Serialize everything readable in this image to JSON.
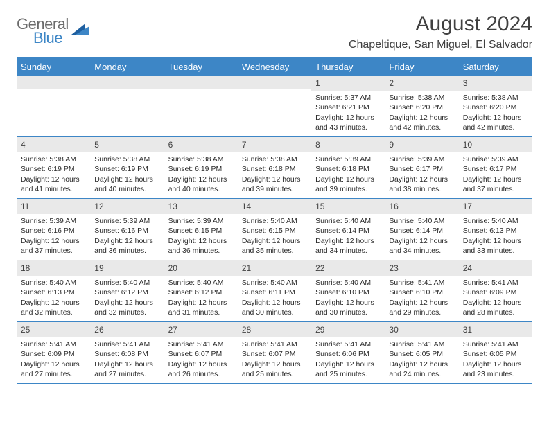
{
  "logo": {
    "text1": "General",
    "text2": "Blue"
  },
  "title": "August 2024",
  "location": "Chapeltique, San Miguel, El Salvador",
  "colors": {
    "accent": "#3d86c6",
    "header_gray": "#e9e9e9",
    "text_dark": "#404040",
    "logo_gray": "#6b6b6b"
  },
  "weekdays": [
    "Sunday",
    "Monday",
    "Tuesday",
    "Wednesday",
    "Thursday",
    "Friday",
    "Saturday"
  ],
  "weeks": [
    [
      {
        "n": "",
        "sr": "",
        "ss": "",
        "dl": ""
      },
      {
        "n": "",
        "sr": "",
        "ss": "",
        "dl": ""
      },
      {
        "n": "",
        "sr": "",
        "ss": "",
        "dl": ""
      },
      {
        "n": "",
        "sr": "",
        "ss": "",
        "dl": ""
      },
      {
        "n": "1",
        "sr": "Sunrise: 5:37 AM",
        "ss": "Sunset: 6:21 PM",
        "dl": "Daylight: 12 hours and 43 minutes."
      },
      {
        "n": "2",
        "sr": "Sunrise: 5:38 AM",
        "ss": "Sunset: 6:20 PM",
        "dl": "Daylight: 12 hours and 42 minutes."
      },
      {
        "n": "3",
        "sr": "Sunrise: 5:38 AM",
        "ss": "Sunset: 6:20 PM",
        "dl": "Daylight: 12 hours and 42 minutes."
      }
    ],
    [
      {
        "n": "4",
        "sr": "Sunrise: 5:38 AM",
        "ss": "Sunset: 6:19 PM",
        "dl": "Daylight: 12 hours and 41 minutes."
      },
      {
        "n": "5",
        "sr": "Sunrise: 5:38 AM",
        "ss": "Sunset: 6:19 PM",
        "dl": "Daylight: 12 hours and 40 minutes."
      },
      {
        "n": "6",
        "sr": "Sunrise: 5:38 AM",
        "ss": "Sunset: 6:19 PM",
        "dl": "Daylight: 12 hours and 40 minutes."
      },
      {
        "n": "7",
        "sr": "Sunrise: 5:38 AM",
        "ss": "Sunset: 6:18 PM",
        "dl": "Daylight: 12 hours and 39 minutes."
      },
      {
        "n": "8",
        "sr": "Sunrise: 5:39 AM",
        "ss": "Sunset: 6:18 PM",
        "dl": "Daylight: 12 hours and 39 minutes."
      },
      {
        "n": "9",
        "sr": "Sunrise: 5:39 AM",
        "ss": "Sunset: 6:17 PM",
        "dl": "Daylight: 12 hours and 38 minutes."
      },
      {
        "n": "10",
        "sr": "Sunrise: 5:39 AM",
        "ss": "Sunset: 6:17 PM",
        "dl": "Daylight: 12 hours and 37 minutes."
      }
    ],
    [
      {
        "n": "11",
        "sr": "Sunrise: 5:39 AM",
        "ss": "Sunset: 6:16 PM",
        "dl": "Daylight: 12 hours and 37 minutes."
      },
      {
        "n": "12",
        "sr": "Sunrise: 5:39 AM",
        "ss": "Sunset: 6:16 PM",
        "dl": "Daylight: 12 hours and 36 minutes."
      },
      {
        "n": "13",
        "sr": "Sunrise: 5:39 AM",
        "ss": "Sunset: 6:15 PM",
        "dl": "Daylight: 12 hours and 36 minutes."
      },
      {
        "n": "14",
        "sr": "Sunrise: 5:40 AM",
        "ss": "Sunset: 6:15 PM",
        "dl": "Daylight: 12 hours and 35 minutes."
      },
      {
        "n": "15",
        "sr": "Sunrise: 5:40 AM",
        "ss": "Sunset: 6:14 PM",
        "dl": "Daylight: 12 hours and 34 minutes."
      },
      {
        "n": "16",
        "sr": "Sunrise: 5:40 AM",
        "ss": "Sunset: 6:14 PM",
        "dl": "Daylight: 12 hours and 34 minutes."
      },
      {
        "n": "17",
        "sr": "Sunrise: 5:40 AM",
        "ss": "Sunset: 6:13 PM",
        "dl": "Daylight: 12 hours and 33 minutes."
      }
    ],
    [
      {
        "n": "18",
        "sr": "Sunrise: 5:40 AM",
        "ss": "Sunset: 6:13 PM",
        "dl": "Daylight: 12 hours and 32 minutes."
      },
      {
        "n": "19",
        "sr": "Sunrise: 5:40 AM",
        "ss": "Sunset: 6:12 PM",
        "dl": "Daylight: 12 hours and 32 minutes."
      },
      {
        "n": "20",
        "sr": "Sunrise: 5:40 AM",
        "ss": "Sunset: 6:12 PM",
        "dl": "Daylight: 12 hours and 31 minutes."
      },
      {
        "n": "21",
        "sr": "Sunrise: 5:40 AM",
        "ss": "Sunset: 6:11 PM",
        "dl": "Daylight: 12 hours and 30 minutes."
      },
      {
        "n": "22",
        "sr": "Sunrise: 5:40 AM",
        "ss": "Sunset: 6:10 PM",
        "dl": "Daylight: 12 hours and 30 minutes."
      },
      {
        "n": "23",
        "sr": "Sunrise: 5:41 AM",
        "ss": "Sunset: 6:10 PM",
        "dl": "Daylight: 12 hours and 29 minutes."
      },
      {
        "n": "24",
        "sr": "Sunrise: 5:41 AM",
        "ss": "Sunset: 6:09 PM",
        "dl": "Daylight: 12 hours and 28 minutes."
      }
    ],
    [
      {
        "n": "25",
        "sr": "Sunrise: 5:41 AM",
        "ss": "Sunset: 6:09 PM",
        "dl": "Daylight: 12 hours and 27 minutes."
      },
      {
        "n": "26",
        "sr": "Sunrise: 5:41 AM",
        "ss": "Sunset: 6:08 PM",
        "dl": "Daylight: 12 hours and 27 minutes."
      },
      {
        "n": "27",
        "sr": "Sunrise: 5:41 AM",
        "ss": "Sunset: 6:07 PM",
        "dl": "Daylight: 12 hours and 26 minutes."
      },
      {
        "n": "28",
        "sr": "Sunrise: 5:41 AM",
        "ss": "Sunset: 6:07 PM",
        "dl": "Daylight: 12 hours and 25 minutes."
      },
      {
        "n": "29",
        "sr": "Sunrise: 5:41 AM",
        "ss": "Sunset: 6:06 PM",
        "dl": "Daylight: 12 hours and 25 minutes."
      },
      {
        "n": "30",
        "sr": "Sunrise: 5:41 AM",
        "ss": "Sunset: 6:05 PM",
        "dl": "Daylight: 12 hours and 24 minutes."
      },
      {
        "n": "31",
        "sr": "Sunrise: 5:41 AM",
        "ss": "Sunset: 6:05 PM",
        "dl": "Daylight: 12 hours and 23 minutes."
      }
    ]
  ]
}
